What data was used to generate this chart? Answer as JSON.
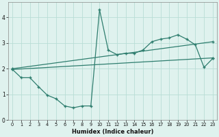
{
  "xlabel": "Humidex (Indice chaleur)",
  "bg_color": "#dff2ee",
  "line_color": "#2e7d6e",
  "grid_color": "#b8ddd6",
  "xlim": [
    -0.5,
    23.5
  ],
  "ylim": [
    0,
    4.6
  ],
  "xticks": [
    0,
    1,
    2,
    3,
    4,
    5,
    6,
    7,
    8,
    9,
    10,
    11,
    12,
    13,
    14,
    15,
    16,
    17,
    18,
    19,
    20,
    21,
    22,
    23
  ],
  "yticks": [
    0,
    1,
    2,
    3,
    4
  ],
  "line1_x": [
    0,
    1,
    2,
    3,
    4,
    5,
    6,
    7,
    8,
    9,
    10,
    11,
    12,
    13,
    14,
    15,
    16,
    17,
    18,
    19,
    20,
    21,
    22,
    23
  ],
  "line1_y": [
    1.97,
    1.65,
    1.65,
    1.3,
    0.97,
    0.83,
    0.55,
    0.48,
    0.55,
    0.55,
    4.3,
    2.72,
    2.55,
    2.6,
    2.6,
    2.73,
    3.05,
    3.15,
    3.2,
    3.32,
    3.15,
    2.93,
    2.05,
    2.4
  ],
  "line2_x": [
    0,
    23
  ],
  "line2_y": [
    1.97,
    2.42
  ],
  "line3_x": [
    0,
    23
  ],
  "line3_y": [
    2.0,
    3.05
  ]
}
